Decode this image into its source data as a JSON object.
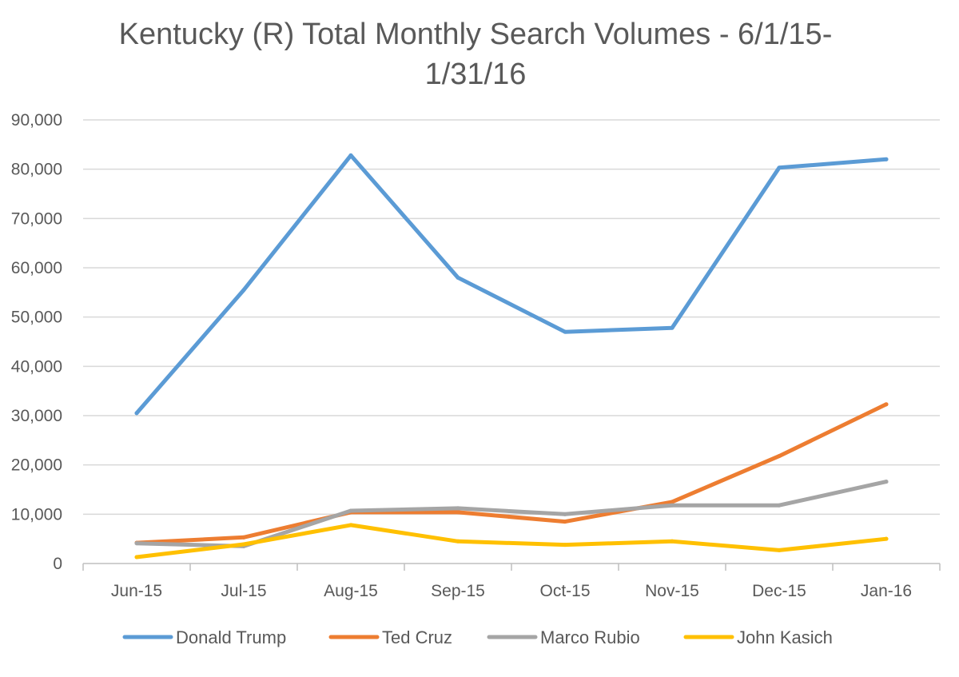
{
  "chart_data": {
    "type": "line",
    "title_lines": [
      "Kentucky (R) Total Monthly Search Volumes - 6/1/15-",
      "1/31/16"
    ],
    "categories": [
      "Jun-15",
      "Jul-15",
      "Aug-15",
      "Sep-15",
      "Oct-15",
      "Nov-15",
      "Dec-15",
      "Jan-16"
    ],
    "ylim": [
      0,
      90000
    ],
    "yticks": [
      0,
      10000,
      20000,
      30000,
      40000,
      50000,
      60000,
      70000,
      80000,
      90000
    ],
    "ytick_labels": [
      "0",
      "10,000",
      "20,000",
      "30,000",
      "40,000",
      "50,000",
      "60,000",
      "70,000",
      "80,000",
      "90,000"
    ],
    "grid": true,
    "legend_position": "bottom",
    "series": [
      {
        "name": "Donald Trump",
        "color": "#5B9BD5",
        "values": [
          30500,
          55500,
          82800,
          58000,
          47000,
          47800,
          80300,
          82000
        ]
      },
      {
        "name": "Ted Cruz",
        "color": "#ED7D31",
        "values": [
          4200,
          5300,
          10400,
          10400,
          8500,
          12500,
          21800,
          32300
        ]
      },
      {
        "name": "Marco Rubio",
        "color": "#A5A5A5",
        "values": [
          4100,
          3500,
          10700,
          11200,
          10000,
          11800,
          11800,
          16600
        ]
      },
      {
        "name": "John Kasich",
        "color": "#FFC000",
        "values": [
          1300,
          3900,
          7800,
          4500,
          3800,
          4500,
          2700,
          5000
        ]
      }
    ]
  }
}
